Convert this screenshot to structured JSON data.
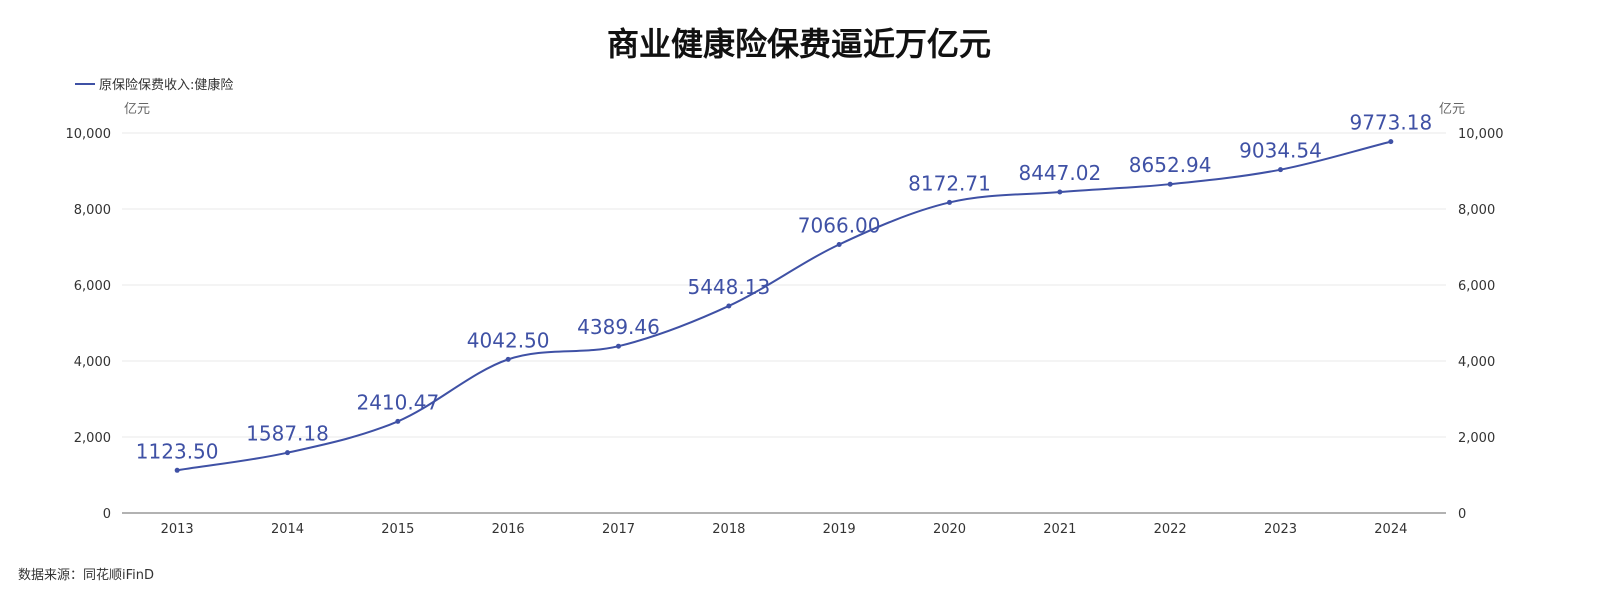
{
  "chart_data": {
    "type": "line",
    "title": "商业健康险保费逼近万亿元",
    "categories": [
      "2013",
      "2014",
      "2015",
      "2016",
      "2017",
      "2018",
      "2019",
      "2020",
      "2021",
      "2022",
      "2023",
      "2024"
    ],
    "series": [
      {
        "name": "原保险保费收入:健康险",
        "values": [
          1123.5,
          1587.18,
          2410.47,
          4042.5,
          4389.46,
          5448.13,
          7066.0,
          8172.71,
          8447.02,
          8652.94,
          9034.54,
          9773.18
        ],
        "labels": [
          "1123.50",
          "1587.18",
          "2410.47",
          "4042.50",
          "4389.46",
          "5448.13",
          "7066.00",
          "8172.71",
          "8447.02",
          "8652.94",
          "9034.54",
          "9773.18"
        ],
        "color": "#3f51a5"
      }
    ],
    "ylim": [
      0,
      10000
    ],
    "yticks": [
      0,
      2000,
      4000,
      6000,
      8000,
      10000
    ],
    "ytick_labels": [
      "0",
      "2,000",
      "4,000",
      "6,000",
      "8,000",
      "10,000"
    ],
    "yunit_left": "亿元",
    "yunit_right": "亿元",
    "grid": true,
    "legend_position": "top-left",
    "source": "数据来源：同花顺iFinD"
  }
}
